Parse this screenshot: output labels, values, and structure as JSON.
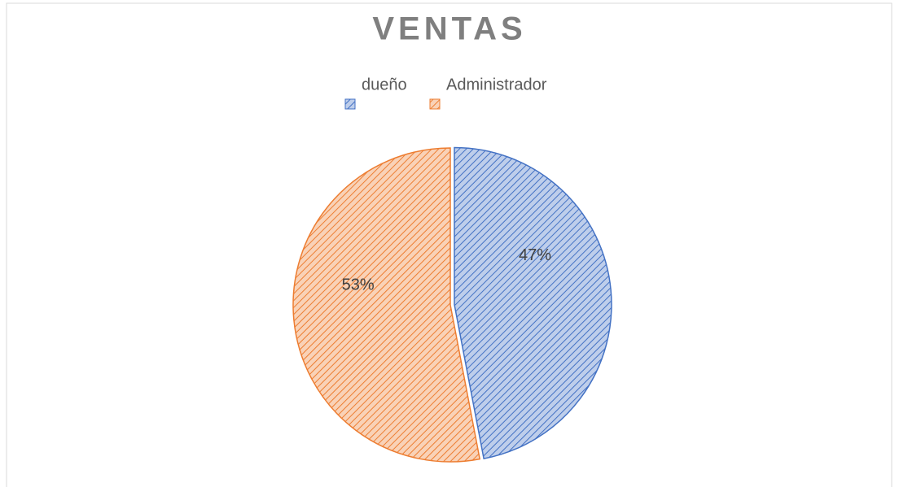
{
  "chart_data": {
    "type": "pie",
    "title": "VENTAS",
    "categories": [
      "dueño",
      "Administrador"
    ],
    "values": [
      47,
      53
    ],
    "value_labels": [
      "47%",
      "53%"
    ],
    "colors": [
      "#4472c4",
      "#ed7d31"
    ],
    "legend": "top"
  }
}
